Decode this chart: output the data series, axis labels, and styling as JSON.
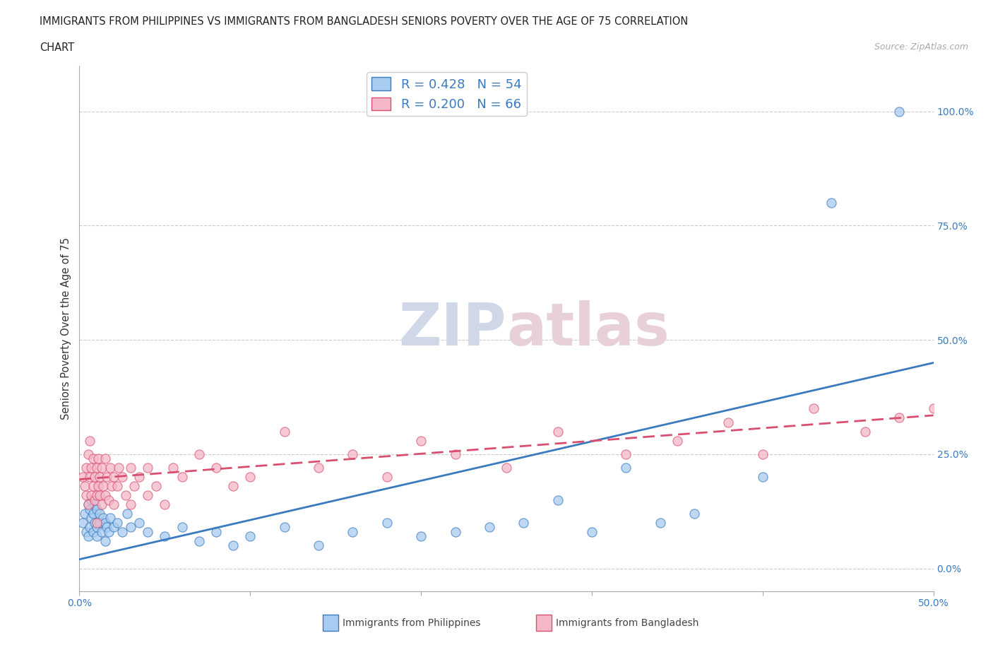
{
  "title_line1": "IMMIGRANTS FROM PHILIPPINES VS IMMIGRANTS FROM BANGLADESH SENIORS POVERTY OVER THE AGE OF 75 CORRELATION",
  "title_line2": "CHART",
  "source": "Source: ZipAtlas.com",
  "ylabel": "Seniors Poverty Over the Age of 75",
  "xlim": [
    0.0,
    0.5
  ],
  "ylim": [
    -0.05,
    1.1
  ],
  "yticks": [
    0.0,
    0.25,
    0.5,
    0.75,
    1.0
  ],
  "ytick_labels": [
    "0.0%",
    "25.0%",
    "50.0%",
    "75.0%",
    "100.0%"
  ],
  "xticks": [
    0.0,
    0.1,
    0.2,
    0.3,
    0.4,
    0.5
  ],
  "xtick_labels": [
    "0.0%",
    "",
    "",
    "",
    "",
    "50.0%"
  ],
  "r_philippines": 0.428,
  "n_philippines": 54,
  "r_bangladesh": 0.2,
  "n_bangladesh": 66,
  "color_philippines": "#a8ccf0",
  "color_bangladesh": "#f5b8c8",
  "line_color_philippines": "#3a7abf",
  "line_color_bangladesh": "#d94f70",
  "watermark_color": "#d0d8e8",
  "watermark_color2": "#e8d0d8",
  "ph_line_start_y": 0.02,
  "ph_line_end_y": 0.45,
  "bd_line_start_y": 0.195,
  "bd_line_end_y": 0.335,
  "philippines_x": [
    0.002,
    0.003,
    0.004,
    0.005,
    0.005,
    0.006,
    0.006,
    0.007,
    0.007,
    0.008,
    0.008,
    0.009,
    0.009,
    0.01,
    0.01,
    0.01,
    0.012,
    0.012,
    0.013,
    0.014,
    0.015,
    0.015,
    0.016,
    0.017,
    0.018,
    0.02,
    0.022,
    0.025,
    0.028,
    0.03,
    0.035,
    0.04,
    0.05,
    0.06,
    0.07,
    0.08,
    0.09,
    0.1,
    0.12,
    0.14,
    0.16,
    0.18,
    0.2,
    0.22,
    0.24,
    0.26,
    0.28,
    0.3,
    0.32,
    0.34,
    0.36,
    0.4,
    0.44,
    0.48
  ],
  "philippines_y": [
    0.1,
    0.12,
    0.08,
    0.14,
    0.07,
    0.13,
    0.09,
    0.11,
    0.15,
    0.08,
    0.12,
    0.1,
    0.14,
    0.07,
    0.09,
    0.13,
    0.1,
    0.12,
    0.08,
    0.11,
    0.06,
    0.1,
    0.09,
    0.08,
    0.11,
    0.09,
    0.1,
    0.08,
    0.12,
    0.09,
    0.1,
    0.08,
    0.07,
    0.09,
    0.06,
    0.08,
    0.05,
    0.07,
    0.09,
    0.05,
    0.08,
    0.1,
    0.07,
    0.08,
    0.09,
    0.1,
    0.15,
    0.08,
    0.22,
    0.1,
    0.12,
    0.2,
    0.8,
    1.0
  ],
  "bangladesh_x": [
    0.002,
    0.003,
    0.004,
    0.004,
    0.005,
    0.005,
    0.006,
    0.006,
    0.007,
    0.007,
    0.008,
    0.008,
    0.009,
    0.009,
    0.01,
    0.01,
    0.01,
    0.011,
    0.011,
    0.012,
    0.012,
    0.013,
    0.013,
    0.014,
    0.015,
    0.015,
    0.016,
    0.017,
    0.018,
    0.019,
    0.02,
    0.02,
    0.022,
    0.023,
    0.025,
    0.027,
    0.03,
    0.03,
    0.032,
    0.035,
    0.04,
    0.04,
    0.045,
    0.05,
    0.055,
    0.06,
    0.07,
    0.08,
    0.09,
    0.1,
    0.12,
    0.14,
    0.16,
    0.18,
    0.2,
    0.22,
    0.25,
    0.28,
    0.32,
    0.35,
    0.38,
    0.4,
    0.43,
    0.46,
    0.48,
    0.5
  ],
  "bangladesh_y": [
    0.2,
    0.18,
    0.22,
    0.16,
    0.25,
    0.14,
    0.2,
    0.28,
    0.16,
    0.22,
    0.18,
    0.24,
    0.15,
    0.2,
    0.1,
    0.16,
    0.22,
    0.18,
    0.24,
    0.16,
    0.2,
    0.14,
    0.22,
    0.18,
    0.16,
    0.24,
    0.2,
    0.15,
    0.22,
    0.18,
    0.14,
    0.2,
    0.18,
    0.22,
    0.2,
    0.16,
    0.14,
    0.22,
    0.18,
    0.2,
    0.16,
    0.22,
    0.18,
    0.14,
    0.22,
    0.2,
    0.25,
    0.22,
    0.18,
    0.2,
    0.3,
    0.22,
    0.25,
    0.2,
    0.28,
    0.25,
    0.22,
    0.3,
    0.25,
    0.28,
    0.32,
    0.25,
    0.35,
    0.3,
    0.33,
    0.35
  ]
}
